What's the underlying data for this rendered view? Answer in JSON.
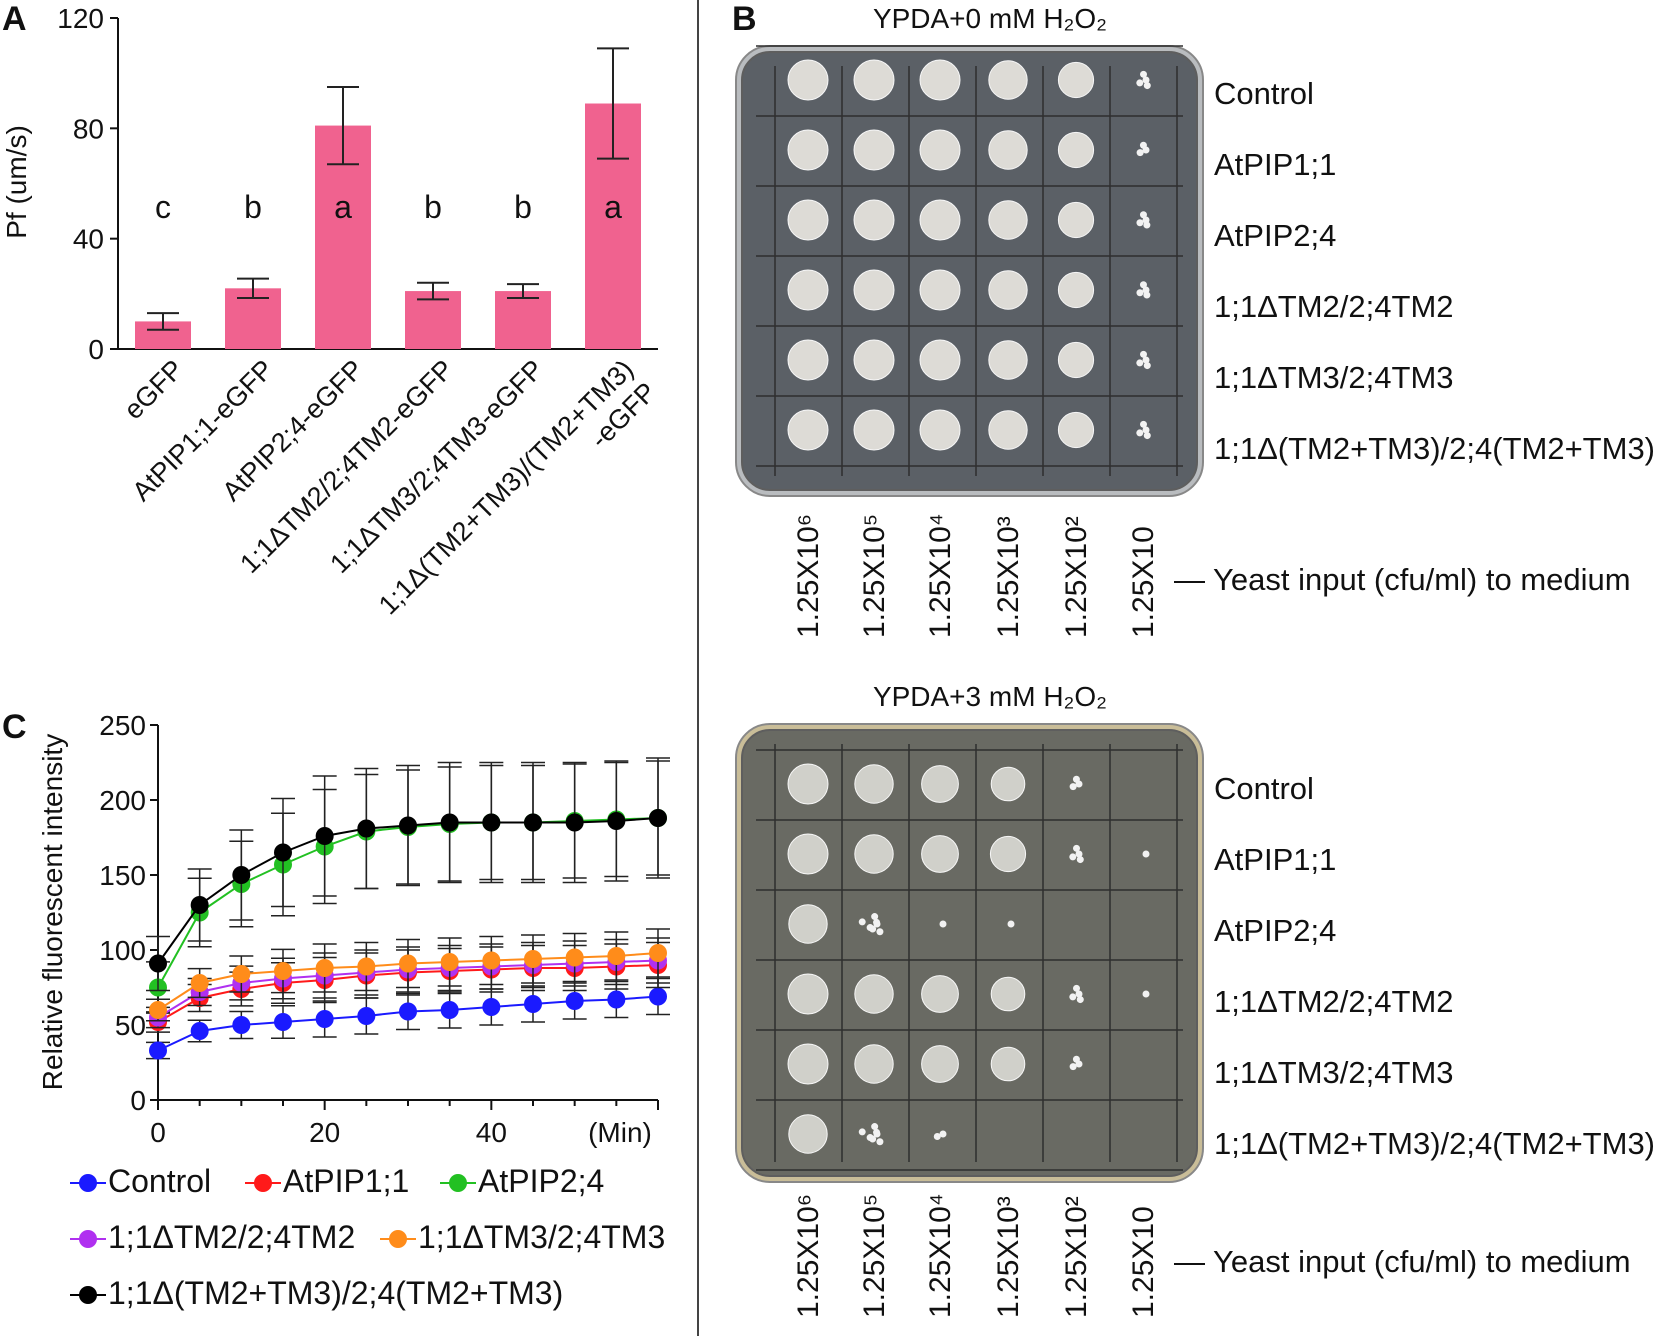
{
  "chart_data": [
    {
      "panel": "A",
      "type": "bar",
      "ylabel": "Pf (um/s)",
      "ylim": [
        0,
        120
      ],
      "yticks": [
        0,
        40,
        80,
        120
      ],
      "categories": [
        "eGFP",
        "AtPIP1;1-eGFP",
        "AtPIP2;4-eGFP",
        "1;1ΔTM2/2;4TM2-eGFP",
        "1;1ΔTM3/2;4TM3-eGFP",
        "1;1Δ(TM2+TM3)/(TM2+TM3)\n-eGFP"
      ],
      "values": [
        10,
        22,
        81,
        21,
        21,
        89
      ],
      "errors": [
        3,
        3.5,
        14,
        3,
        2.5,
        20
      ],
      "significance": [
        "c",
        "b",
        "a",
        "b",
        "b",
        "a"
      ],
      "color": "#f0628f"
    },
    {
      "panel": "C",
      "type": "line",
      "ylabel": "Relative fluorescent intensity",
      "xlabel": "(Min)",
      "xlim": [
        0,
        60
      ],
      "ylim": [
        0,
        250
      ],
      "xticks": [
        0,
        20,
        40
      ],
      "yticks": [
        0,
        50,
        100,
        150,
        200,
        250
      ],
      "x": [
        0,
        5,
        10,
        15,
        20,
        25,
        30,
        35,
        40,
        45,
        50,
        55,
        60
      ],
      "series": [
        {
          "name": "Control",
          "color": "#1a1aff",
          "values": [
            33,
            46,
            50,
            52,
            54,
            56,
            59,
            60,
            62,
            64,
            66,
            67,
            69
          ],
          "err": 12
        },
        {
          "name": "AtPIP1;1",
          "color": "#ff1a1a",
          "values": [
            52,
            68,
            74,
            78,
            80,
            83,
            85,
            86,
            87,
            88,
            88,
            89,
            90
          ],
          "err": 15
        },
        {
          "name": "AtPIP2;4",
          "color": "#22c022",
          "values": [
            75,
            125,
            144,
            157,
            169,
            179,
            182,
            184,
            185,
            185,
            186,
            187,
            188
          ],
          "err": 38
        },
        {
          "name": "1;1ΔTM2/2;4TM2",
          "color": "#b030f0",
          "values": [
            55,
            72,
            78,
            81,
            83,
            85,
            87,
            88,
            89,
            90,
            91,
            92,
            93
          ],
          "err": 15
        },
        {
          "name": "1;1ΔTM3/2;4TM3",
          "color": "#ff8c1a",
          "values": [
            60,
            78,
            84,
            86,
            88,
            89,
            91,
            92,
            93,
            94,
            95,
            96,
            98
          ],
          "err": 16
        },
        {
          "name": "1;1Δ(TM2+TM3)/2;4(TM2+TM3)",
          "color": "#000000",
          "values": [
            91,
            130,
            150,
            165,
            176,
            181,
            183,
            185,
            185,
            185,
            185,
            186,
            188
          ],
          "err": 40
        }
      ]
    }
  ],
  "panels": {
    "a": {
      "letter": "A"
    },
    "b": {
      "letter": "B",
      "top_title": "YPDA+0 mM H₂O₂",
      "bottom_title": "YPDA+3 mM H₂O₂",
      "row_labels": [
        "Control",
        "AtPIP1;1",
        "AtPIP2;4",
        "1;1ΔTM2/2;4TM2",
        "1;1ΔTM3/2;4TM3",
        "1;1Δ(TM2+TM3)/2;4(TM2+TM3)"
      ],
      "dilutions": [
        "1.25X10⁶",
        "1.25X10⁵",
        "1.25X10⁴",
        "1.25X10³",
        "1.25X10²",
        "1.25X10"
      ],
      "dilution_caption": "— Yeast input (cfu/ml) to medium",
      "top_colony_growth": [
        [
          1,
          1,
          1,
          0.9,
          0.7,
          0.3
        ],
        [
          1,
          1,
          1,
          0.9,
          0.7,
          0.2
        ],
        [
          1,
          1,
          1,
          0.9,
          0.7,
          0.25
        ],
        [
          1,
          1,
          1,
          0.9,
          0.7,
          0.25
        ],
        [
          1,
          1,
          1,
          0.9,
          0.7,
          0.3
        ],
        [
          1,
          1,
          1,
          0.9,
          0.7,
          0.3
        ]
      ],
      "bottom_colony_growth": [
        [
          1,
          0.9,
          0.8,
          0.6,
          0.2,
          0
        ],
        [
          1,
          0.9,
          0.8,
          0.7,
          0.3,
          0.05
        ],
        [
          0.9,
          0.5,
          0.1,
          0.03,
          0,
          0
        ],
        [
          1,
          0.9,
          0.8,
          0.6,
          0.3,
          0.05
        ],
        [
          1,
          0.9,
          0.8,
          0.6,
          0.2,
          0
        ],
        [
          0.9,
          0.5,
          0.15,
          0,
          0,
          0
        ]
      ]
    },
    "c": {
      "letter": "C"
    }
  }
}
